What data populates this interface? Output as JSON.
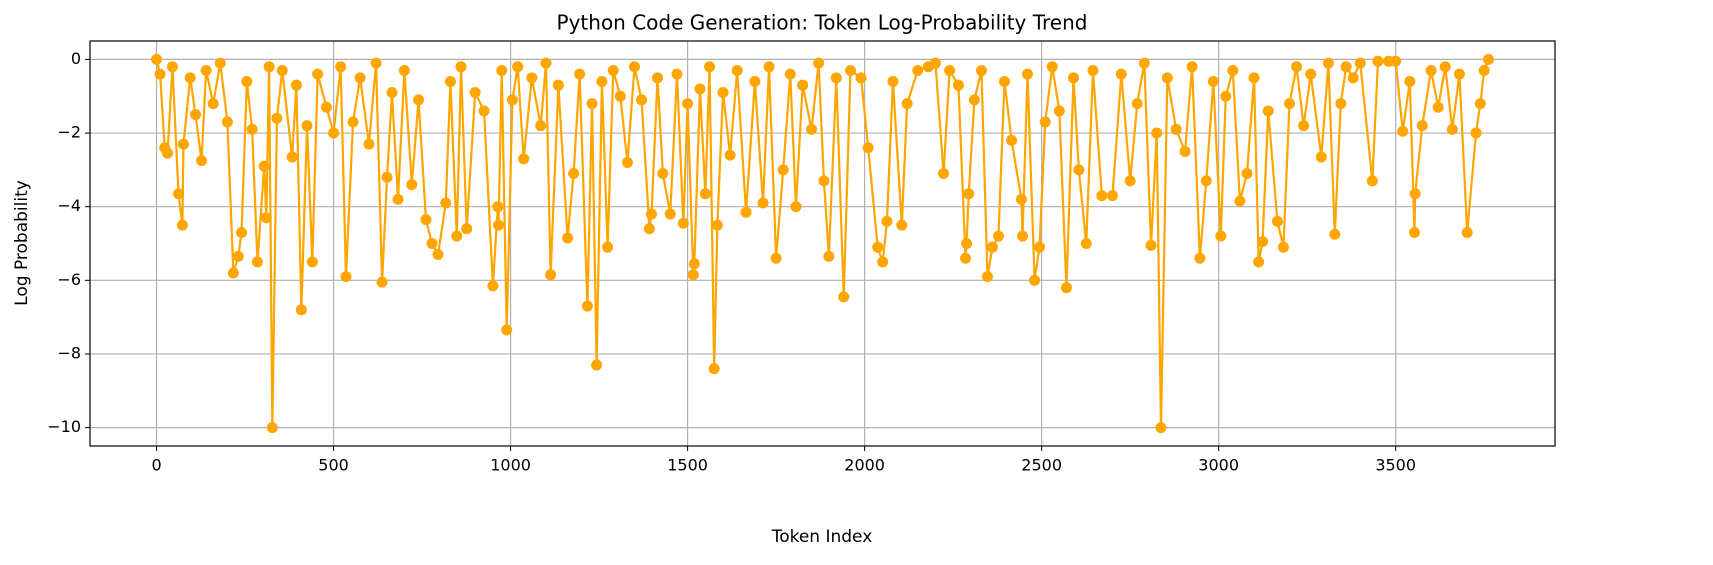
{
  "chart_data": {
    "type": "line",
    "title": "Python Code Generation: Token Log-Probability Trend",
    "xlabel": "Token Index",
    "ylabel": "Log Probability",
    "color": "#ffa500",
    "grid": true,
    "xlim": [
      -188,
      3950
    ],
    "ylim": [
      -10.5,
      0.5
    ],
    "xticks": [
      0,
      500,
      1000,
      1500,
      2000,
      2500,
      3000,
      3500
    ],
    "yticks": [
      {
        "value": -10,
        "label": "−10"
      },
      {
        "value": -8,
        "label": "−8"
      },
      {
        "value": -6,
        "label": "−6"
      },
      {
        "value": -4,
        "label": "−4"
      },
      {
        "value": -2,
        "label": "−2"
      },
      0
    ],
    "x": [
      0,
      10,
      23,
      31,
      45,
      62,
      73,
      76,
      95,
      110,
      127,
      140,
      160,
      180,
      200,
      217,
      231,
      240,
      255,
      270,
      285,
      304,
      310,
      318,
      327,
      340,
      355,
      383,
      395,
      409,
      425,
      440,
      455,
      480,
      500,
      520,
      535,
      555,
      575,
      600,
      620,
      637,
      651,
      665,
      682,
      700,
      721,
      740,
      761,
      778,
      795,
      817,
      830,
      848,
      860,
      876,
      900,
      925,
      950,
      964,
      966,
      975,
      989,
      1005,
      1020,
      1037,
      1060,
      1085,
      1100,
      1113,
      1135,
      1161,
      1178,
      1195,
      1217,
      1230,
      1243,
      1258,
      1274,
      1290,
      1310,
      1330,
      1350,
      1370,
      1392,
      1398,
      1415,
      1430,
      1451,
      1470,
      1488,
      1500,
      1516,
      1519,
      1535,
      1550,
      1562,
      1575,
      1584,
      1600,
      1620,
      1640,
      1665,
      1690,
      1713,
      1730,
      1750,
      1770,
      1790,
      1806,
      1825,
      1850,
      1870,
      1885,
      1899,
      1920,
      1941,
      1960,
      1990,
      2010,
      2037,
      2051,
      2063,
      2080,
      2105,
      2120,
      2150,
      2180,
      2200,
      2223,
      2240,
      2265,
      2285,
      2288,
      2294,
      2310,
      2330,
      2347,
      2361,
      2378,
      2395,
      2415,
      2443,
      2446,
      2460,
      2480,
      2494,
      2510,
      2530,
      2550,
      2570,
      2590,
      2605,
      2626,
      2645,
      2670,
      2700,
      2725,
      2750,
      2770,
      2790,
      2809,
      2825,
      2837,
      2855,
      2880,
      2905,
      2925,
      2947,
      2965,
      2985,
      3006,
      3020,
      3040,
      3060,
      3080,
      3100,
      3113,
      3124,
      3140,
      3166,
      3183,
      3200,
      3220,
      3240,
      3260,
      3290,
      3310,
      3328,
      3345,
      3360,
      3380,
      3400,
      3434,
      3450,
      3480,
      3500,
      3520,
      3540,
      3553,
      3555,
      3575,
      3600,
      3620,
      3640,
      3660,
      3680,
      3702,
      3727,
      3739,
      3750,
      3762
    ],
    "values": [
      0,
      -0.4,
      -2.4,
      -2.55,
      -0.2,
      -3.65,
      -4.5,
      -2.3,
      -0.5,
      -1.5,
      -2.75,
      -0.3,
      -1.2,
      -0.1,
      -1.7,
      -5.8,
      -5.35,
      -4.7,
      -0.6,
      -1.9,
      -5.5,
      -2.9,
      -4.3,
      -0.2,
      -10.0,
      -1.6,
      -0.3,
      -2.65,
      -0.7,
      -6.8,
      -1.8,
      -5.5,
      -0.4,
      -1.3,
      -2.0,
      -0.2,
      -5.9,
      -1.7,
      -0.5,
      -2.3,
      -0.1,
      -6.05,
      -3.2,
      -0.9,
      -3.8,
      -0.3,
      -3.4,
      -1.1,
      -4.35,
      -5.0,
      -5.3,
      -3.9,
      -0.6,
      -4.8,
      -0.2,
      -4.6,
      -0.9,
      -1.4,
      -6.15,
      -4.0,
      -4.5,
      -0.3,
      -7.35,
      -1.1,
      -0.2,
      -2.7,
      -0.5,
      -1.8,
      -0.1,
      -5.85,
      -0.7,
      -4.85,
      -3.1,
      -0.4,
      -6.7,
      -1.2,
      -8.3,
      -0.6,
      -5.1,
      -0.3,
      -1.0,
      -2.8,
      -0.2,
      -1.1,
      -4.6,
      -4.2,
      -0.5,
      -3.1,
      -4.2,
      -0.4,
      -4.45,
      -1.2,
      -5.85,
      -5.55,
      -0.8,
      -3.65,
      -0.2,
      -8.4,
      -4.5,
      -0.9,
      -2.6,
      -0.3,
      -4.15,
      -0.6,
      -3.9,
      -0.2,
      -5.4,
      -3.0,
      -0.4,
      -4.0,
      -0.7,
      -1.9,
      -0.1,
      -3.3,
      -5.35,
      -0.5,
      -6.45,
      -0.3,
      -0.5,
      -2.4,
      -5.1,
      -5.5,
      -4.4,
      -0.6,
      -4.5,
      -1.2,
      -0.3,
      -0.2,
      -0.1,
      -3.1,
      -0.3,
      -0.7,
      -5.4,
      -5.0,
      -3.65,
      -1.1,
      -0.3,
      -5.9,
      -5.1,
      -4.8,
      -0.6,
      -2.2,
      -3.8,
      -4.8,
      -0.4,
      -6.0,
      -5.1,
      -1.7,
      -0.2,
      -1.4,
      -6.2,
      -0.5,
      -3.0,
      -5.0,
      -0.3,
      -3.7,
      -3.7,
      -0.4,
      -3.3,
      -1.2,
      -0.1,
      -5.05,
      -2.0,
      -10.0,
      -0.5,
      -1.9,
      -2.5,
      -0.2,
      -5.4,
      -3.3,
      -0.6,
      -4.8,
      -1.0,
      -0.3,
      -3.85,
      -3.1,
      -0.5,
      -5.5,
      -4.95,
      -1.4,
      -4.4,
      -5.1,
      -1.2,
      -0.2,
      -1.8,
      -0.4,
      -2.65,
      -0.1,
      -4.75,
      -1.2,
      -0.2,
      -0.5,
      -0.1,
      -3.3,
      -0.05,
      -0.05,
      -0.05,
      -1.95,
      -0.6,
      -4.7,
      -3.65,
      -1.8,
      -0.3,
      -1.3,
      -0.2,
      -1.9,
      -0.4,
      -4.7,
      -2.0,
      -1.2,
      -0.3,
      0
    ]
  }
}
